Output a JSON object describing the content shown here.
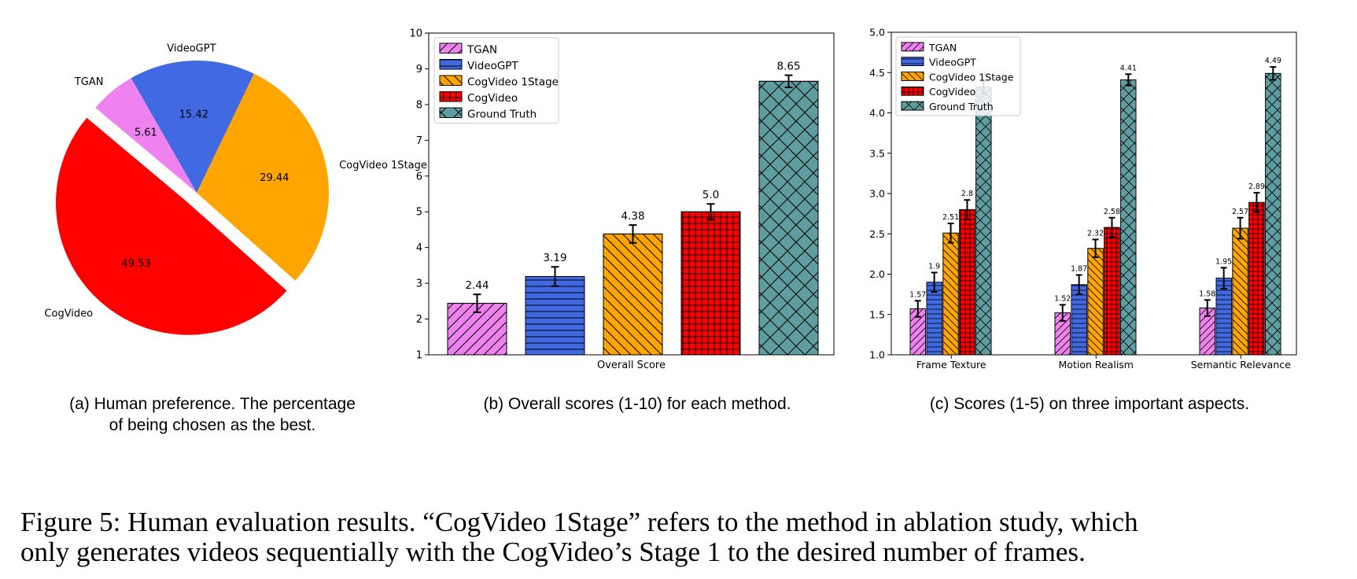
{
  "colors": {
    "TGAN": "#ee82ee",
    "VideoGPT": "#4169e1",
    "CogVideo 1Stage": "#ffa500",
    "CogVideo": "#ff0000",
    "Ground Truth": "#5f9ea0"
  },
  "captions": {
    "a_line1": "(a) Human preference. The percentage",
    "a_line2": "of being chosen as the best.",
    "b": "(b) Overall scores (1-10) for each method.",
    "c": "(c) Scores (1-5) on three important aspects."
  },
  "figure_caption": {
    "line1": "Figure 5: Human evaluation results. “CogVideo 1Stage” refers to the method in ablation study, which",
    "line2": "only generates videos sequentially with the CogVideo’s Stage 1 to the desired number of frames."
  },
  "chart_data": [
    {
      "type": "pie",
      "title": "",
      "labels": [
        "CogVideo",
        "CogVideo 1Stage",
        "VideoGPT",
        "TGAN"
      ],
      "values": [
        49.53,
        29.44,
        15.42,
        5.61
      ],
      "value_labels": [
        "49.53",
        "29.44",
        "15.42",
        "5.61"
      ],
      "exploded": "CogVideo"
    },
    {
      "type": "bar",
      "title": "",
      "xlabel": "Overall Score",
      "ylabel": "",
      "categories": [
        "Overall Score"
      ],
      "series": [
        {
          "name": "TGAN",
          "values": [
            2.44
          ],
          "error": [
            0.25
          ],
          "hatch": "diag-up"
        },
        {
          "name": "VideoGPT",
          "values": [
            3.19
          ],
          "error": [
            0.27
          ],
          "hatch": "horizontal"
        },
        {
          "name": "CogVideo 1Stage",
          "values": [
            4.38
          ],
          "error": [
            0.25
          ],
          "hatch": "diag-down"
        },
        {
          "name": "CogVideo",
          "values": [
            5.0
          ],
          "error": [
            0.22
          ],
          "hatch": "grid"
        },
        {
          "name": "Ground Truth",
          "values": [
            8.65
          ],
          "error": [
            0.17
          ],
          "hatch": "cross"
        }
      ],
      "value_labels": [
        "2.44",
        "3.19",
        "4.38",
        "5.0",
        "8.65"
      ],
      "ylim": [
        1,
        10
      ],
      "yticks": [
        "1",
        "2",
        "3",
        "4",
        "5",
        "6",
        "7",
        "8",
        "9",
        "10"
      ],
      "grid": false,
      "legend": "top-left"
    },
    {
      "type": "bar",
      "title": "",
      "xlabel": "",
      "ylabel": "",
      "categories": [
        "Frame Texture",
        "Motion Realism",
        "Semantic Relevance"
      ],
      "series": [
        {
          "name": "TGAN",
          "values": [
            1.57,
            1.52,
            1.58
          ],
          "error": [
            0.1,
            0.1,
            0.1
          ],
          "labels": [
            "1.57",
            "1.52",
            "1.58"
          ],
          "hatch": "diag-up"
        },
        {
          "name": "VideoGPT",
          "values": [
            1.9,
            1.87,
            1.95
          ],
          "error": [
            0.12,
            0.12,
            0.13
          ],
          "labels": [
            "1.9",
            "1.87",
            "1.95"
          ],
          "hatch": "horizontal"
        },
        {
          "name": "CogVideo 1Stage",
          "values": [
            2.51,
            2.32,
            2.57
          ],
          "error": [
            0.12,
            0.11,
            0.13
          ],
          "labels": [
            "2.51",
            "2.32",
            "2.57"
          ],
          "hatch": "diag-down"
        },
        {
          "name": "CogVideo",
          "values": [
            2.8,
            2.58,
            2.89
          ],
          "error": [
            0.12,
            0.12,
            0.12
          ],
          "labels": [
            "2.8",
            "2.58",
            "2.89"
          ],
          "hatch": "grid"
        },
        {
          "name": "Ground Truth",
          "values": [
            4.32,
            4.41,
            4.49
          ],
          "error": [
            0.08,
            0.07,
            0.08
          ],
          "labels": [
            "",
            "4.41",
            "4.49"
          ],
          "hatch": "cross"
        }
      ],
      "ylim": [
        1.0,
        5.0
      ],
      "yticks": [
        "1.0",
        "1.5",
        "2.0",
        "2.5",
        "3.0",
        "3.5",
        "4.0",
        "4.5",
        "5.0"
      ],
      "grid": false,
      "legend": "top-left"
    }
  ]
}
